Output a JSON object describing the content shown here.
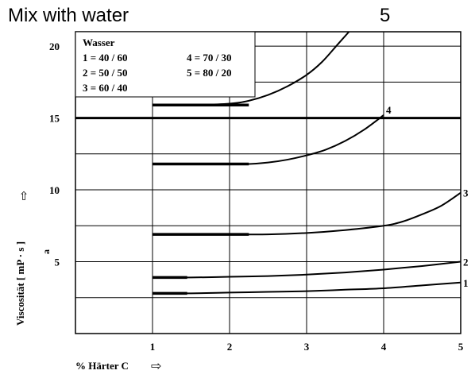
{
  "header": {
    "caption": "Mix with water",
    "number": "5"
  },
  "chart_data": {
    "type": "line",
    "xlabel": "% Härter C",
    "ylabel": "Viscosität [ mP · s ]",
    "ylabel_sub": "a",
    "xlim": [
      0,
      5
    ],
    "ylim": [
      0,
      21
    ],
    "xticks": [
      "1",
      "2",
      "3",
      "4",
      "5"
    ],
    "yticks": [
      "5",
      "10",
      "15",
      "20"
    ],
    "arrow_glyph": "⇨",
    "yarrow_glyph": "⇧",
    "grid": true,
    "legend": {
      "title": "Wasser",
      "entries": [
        "1 = 40 / 60",
        "4 = 70 / 30",
        "2 = 50 / 50",
        "5 = 80 / 20",
        "3 = 60 / 40"
      ],
      "position": "top-left"
    },
    "series": [
      {
        "label": "1",
        "x": [
          1,
          1.5,
          2,
          2.5,
          3,
          3.5,
          4,
          4.5,
          5
        ],
        "y": [
          2.8,
          2.8,
          2.85,
          2.9,
          2.95,
          3.05,
          3.15,
          3.35,
          3.55
        ]
      },
      {
        "label": "2",
        "x": [
          1,
          1.5,
          2,
          2.5,
          3,
          3.5,
          4,
          4.5,
          5
        ],
        "y": [
          3.9,
          3.9,
          3.95,
          4.0,
          4.1,
          4.25,
          4.45,
          4.7,
          5.0
        ]
      },
      {
        "label": "3",
        "x": [
          1,
          1.5,
          2,
          2.5,
          3,
          3.5,
          4,
          4.25,
          4.5,
          4.75,
          5
        ],
        "y": [
          6.9,
          6.9,
          6.9,
          6.9,
          7.0,
          7.2,
          7.5,
          7.8,
          8.3,
          8.9,
          9.8
        ]
      },
      {
        "label": "4",
        "x": [
          1,
          1.5,
          2,
          2.25,
          2.5,
          2.75,
          3,
          3.25,
          3.5,
          3.75,
          4
        ],
        "y": [
          11.8,
          11.8,
          11.8,
          11.8,
          11.9,
          12.1,
          12.4,
          12.8,
          13.4,
          14.2,
          15.2
        ]
      },
      {
        "label": "5",
        "x": [
          1,
          1.5,
          2,
          2.25,
          2.5,
          2.75,
          3,
          3.2,
          3.4,
          3.55
        ],
        "y": [
          15.9,
          15.9,
          16.0,
          16.2,
          16.6,
          17.2,
          18.0,
          18.9,
          20.1,
          21.0
        ]
      }
    ],
    "reference_line": {
      "y": 15
    }
  }
}
